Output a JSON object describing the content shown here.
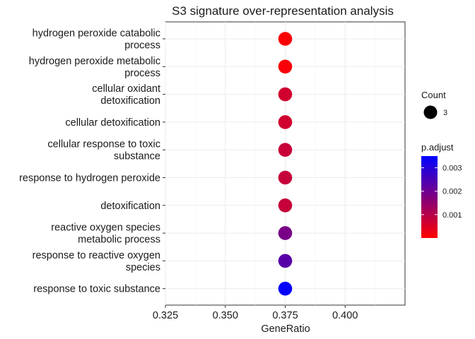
{
  "chart_data": {
    "type": "scatter",
    "title": "S3 signature over-representation analysis",
    "xlabel": "GeneRatio",
    "ylabel": "",
    "xlim": [
      0.325,
      0.425
    ],
    "x_ticks": [
      "0.325",
      "0.350",
      "0.375",
      "0.400"
    ],
    "x_tick_values": [
      0.325,
      0.35,
      0.375,
      0.4
    ],
    "grid": true,
    "categories": [
      "hydrogen peroxide catabolic\nprocess",
      "hydrogen peroxide metabolic\nprocess",
      "cellular oxidant\ndetoxification",
      "cellular detoxification",
      "cellular response to toxic\nsubstance",
      "response to hydrogen peroxide",
      "detoxification",
      "reactive oxygen species\nmetabolic process",
      "response to reactive oxygen\nspecies",
      "response to toxic substance"
    ],
    "points": [
      {
        "x": 0.375,
        "count": 3,
        "p_adjust": 5e-05
      },
      {
        "x": 0.375,
        "count": 3,
        "p_adjust": 0.0001
      },
      {
        "x": 0.375,
        "count": 3,
        "p_adjust": 0.00065
      },
      {
        "x": 0.375,
        "count": 3,
        "p_adjust": 0.00065
      },
      {
        "x": 0.375,
        "count": 3,
        "p_adjust": 0.00075
      },
      {
        "x": 0.375,
        "count": 3,
        "p_adjust": 0.0008
      },
      {
        "x": 0.375,
        "count": 3,
        "p_adjust": 0.0008
      },
      {
        "x": 0.375,
        "count": 3,
        "p_adjust": 0.00185
      },
      {
        "x": 0.375,
        "count": 3,
        "p_adjust": 0.0023
      },
      {
        "x": 0.375,
        "count": 3,
        "p_adjust": 0.00345
      }
    ],
    "legend": {
      "position": "right",
      "size_title": "Count",
      "size_entries": [
        "3"
      ],
      "color_title": "p.adjust",
      "color_range": [
        0.0,
        0.0035
      ],
      "color_ticks": [
        "0.003",
        "0.002",
        "0.001"
      ],
      "color_tick_values": [
        0.003,
        0.002,
        0.001
      ],
      "color_low": "#ff0000",
      "color_high": "#0000ff"
    }
  }
}
